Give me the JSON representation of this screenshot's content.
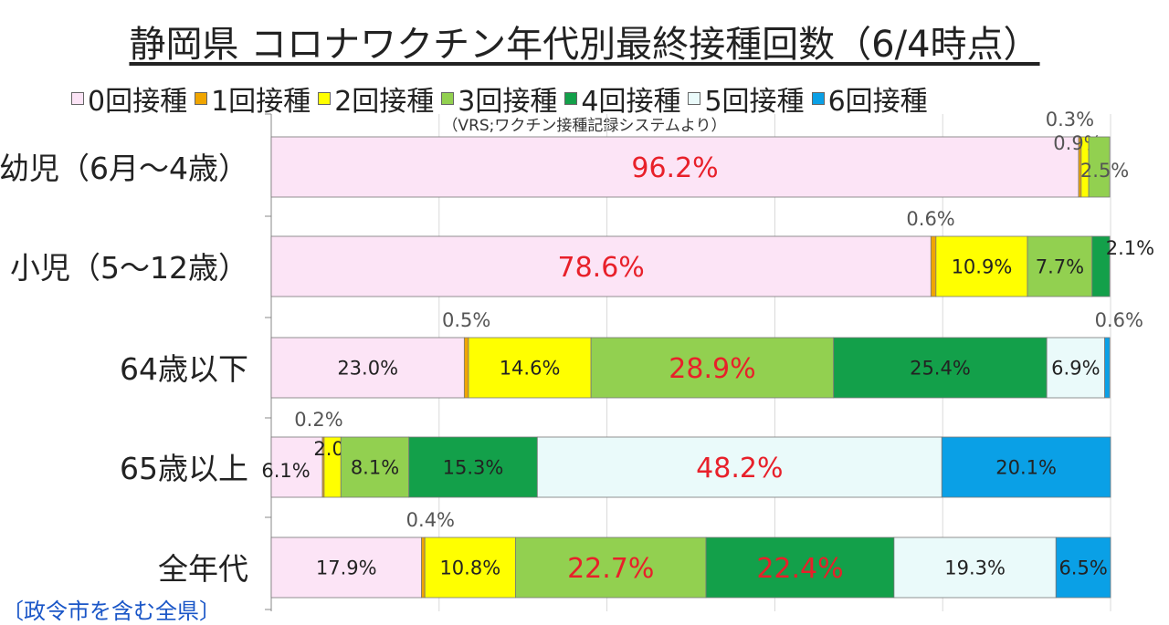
{
  "title": "静岡県 コロナワクチン年代別最終接種回数（6/4時点）",
  "source_note": "（VRS;ワクチン接種記録システムより）",
  "footer_note": "〔政令市を含む全県〕",
  "chart_data": {
    "type": "bar",
    "orientation": "horizontal",
    "stacked": true,
    "unit": "%",
    "xlim": [
      0,
      100
    ],
    "grid": true,
    "legend_position": "top",
    "categories": [
      "幼児（6月～4歳）",
      "小児（5～12歳）",
      "64歳以下",
      "65歳以上",
      "全年代"
    ],
    "series": [
      {
        "name": "0回接種",
        "color": "#fce4f6",
        "values": [
          96.2,
          78.6,
          23.0,
          6.1,
          17.9
        ],
        "labels": [
          "96.2%",
          "78.6%",
          "23.0%",
          "6.1%",
          "17.9%"
        ]
      },
      {
        "name": "1回接種",
        "color": "#f0a500",
        "values": [
          0.3,
          0.6,
          0.5,
          0.2,
          0.4
        ],
        "labels": [
          "0.3%",
          "0.6%",
          "0.5%",
          "0.2%",
          "0.4%"
        ]
      },
      {
        "name": "2回接種",
        "color": "#ffff00",
        "values": [
          0.9,
          10.9,
          14.6,
          2.0,
          10.8
        ],
        "labels": [
          "0.9%",
          "10.9%",
          "14.6%",
          "2.0%",
          "10.8%"
        ]
      },
      {
        "name": "3回接種",
        "color": "#92d050",
        "values": [
          2.5,
          7.7,
          28.9,
          8.1,
          22.7
        ],
        "labels": [
          "2.5%",
          "7.7%",
          "28.9%",
          "8.1%",
          "22.7%"
        ]
      },
      {
        "name": "4回接種",
        "color": "#13a04a",
        "values": [
          0,
          2.1,
          25.4,
          15.3,
          22.4
        ],
        "labels": [
          "",
          "2.1%",
          "25.4%",
          "15.3%",
          "22.4%"
        ]
      },
      {
        "name": "5回接種",
        "color": "#eafafa",
        "values": [
          0,
          0,
          6.9,
          48.2,
          19.3
        ],
        "labels": [
          "",
          "",
          "6.9%",
          "48.2%",
          "19.3%"
        ]
      },
      {
        "name": "6回接種",
        "color": "#0aa0e6",
        "values": [
          0,
          0,
          0.6,
          20.1,
          6.5
        ],
        "labels": [
          "",
          "",
          "0.6%",
          "20.1%",
          "6.5%"
        ]
      }
    ]
  }
}
